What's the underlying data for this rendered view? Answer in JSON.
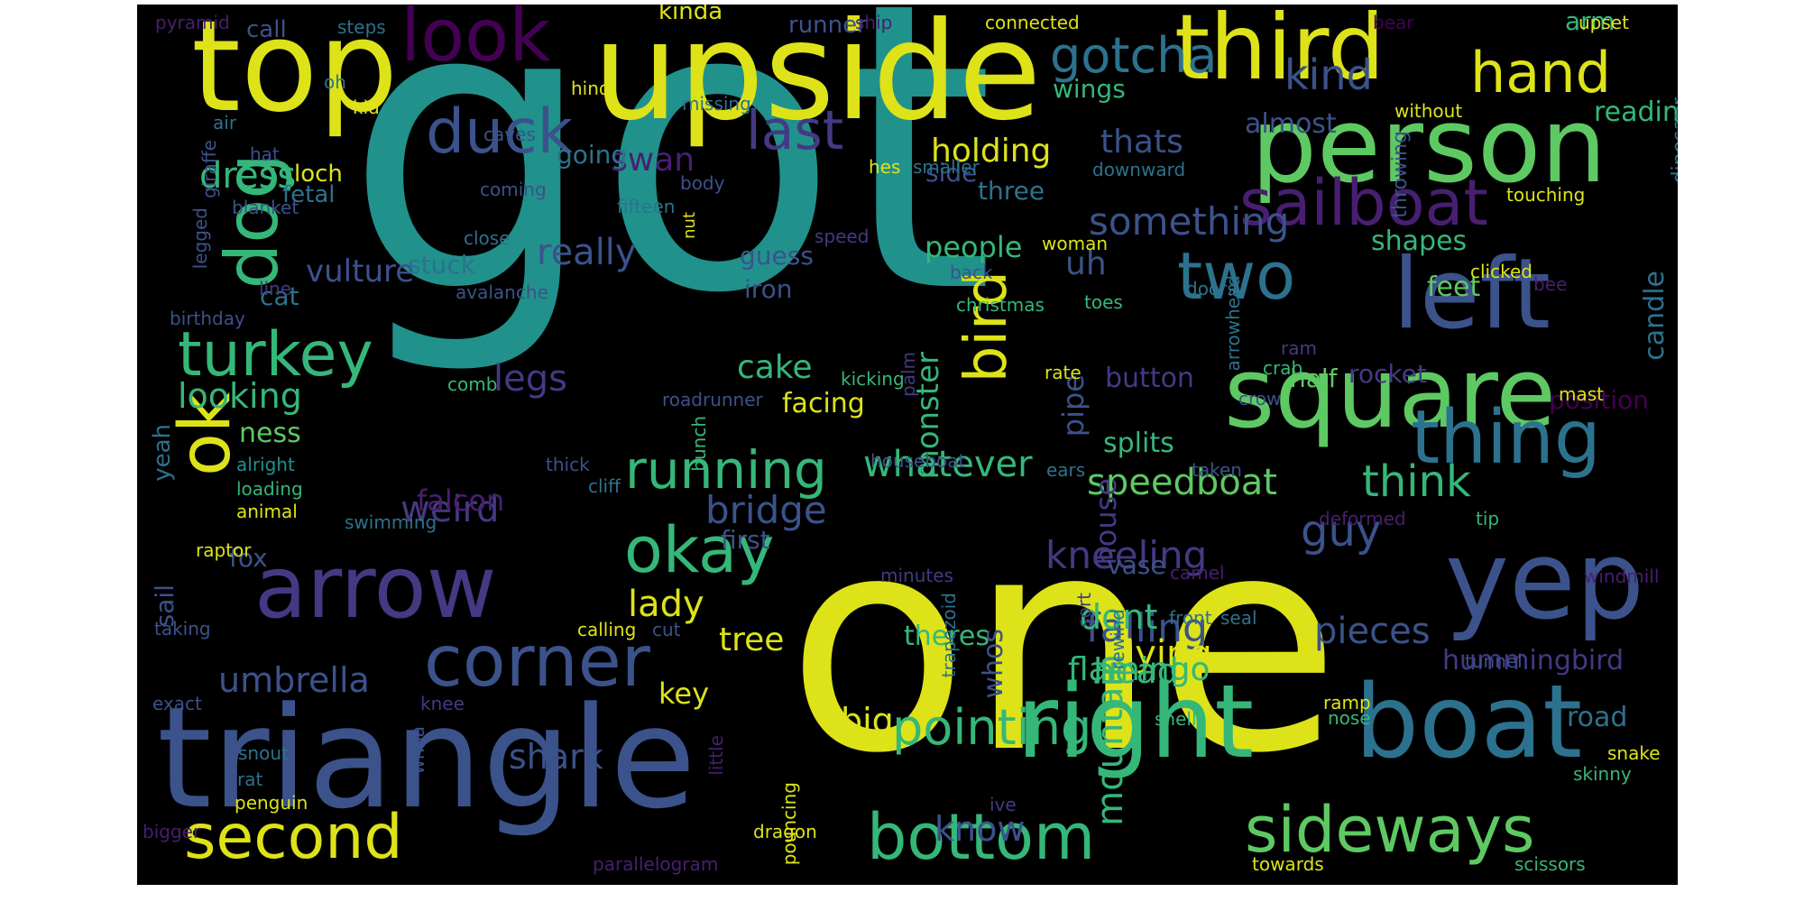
{
  "palette": {
    "yellow": "#dde318",
    "lime": "#b2dd2c",
    "green": "#5ec962",
    "teal_green": "#35b779",
    "teal": "#21918c",
    "blue": "#2c728e",
    "slate": "#3b528b",
    "indigo": "#443983",
    "purple": "#440154",
    "violet": "#481f70"
  },
  "words": [
    {
      "text": "got",
      "color": "teal"
    },
    {
      "text": "one",
      "color": "yellow"
    },
    {
      "text": "triangle",
      "color": "slate"
    },
    {
      "text": "upside",
      "color": "yellow"
    },
    {
      "text": "top",
      "color": "yellow"
    },
    {
      "text": "person",
      "color": "green"
    },
    {
      "text": "right",
      "color": "teal_green"
    },
    {
      "text": "boat",
      "color": "blue"
    },
    {
      "text": "yep",
      "color": "slate"
    },
    {
      "text": "square",
      "color": "green"
    },
    {
      "text": "left",
      "color": "slate"
    },
    {
      "text": "third",
      "color": "yellow"
    },
    {
      "text": "arrow",
      "color": "indigo"
    },
    {
      "text": "sailboat",
      "color": "violet"
    },
    {
      "text": "thing",
      "color": "blue"
    },
    {
      "text": "corner",
      "color": "slate"
    },
    {
      "text": "look",
      "color": "purple"
    },
    {
      "text": "dog",
      "color": "teal_green"
    },
    {
      "text": "two",
      "color": "blue"
    },
    {
      "text": "bird",
      "color": "yellow"
    },
    {
      "text": "ok",
      "color": "yellow"
    },
    {
      "text": "okay",
      "color": "teal_green"
    },
    {
      "text": "bottom",
      "color": "teal_green"
    },
    {
      "text": "sideways",
      "color": "green"
    },
    {
      "text": "second",
      "color": "yellow"
    },
    {
      "text": "turkey",
      "color": "teal_green"
    },
    {
      "text": "hand",
      "color": "yellow"
    },
    {
      "text": "duck",
      "color": "slate"
    },
    {
      "text": "last",
      "color": "indigo"
    },
    {
      "text": "running",
      "color": "teal_green"
    },
    {
      "text": "gotcha",
      "color": "blue"
    },
    {
      "text": "kind",
      "color": "slate"
    },
    {
      "text": "pointing",
      "color": "teal_green"
    },
    {
      "text": "guy",
      "color": "slate"
    },
    {
      "text": "think",
      "color": "teal_green"
    },
    {
      "text": "whatever",
      "color": "teal_green"
    },
    {
      "text": "speedboat",
      "color": "green"
    },
    {
      "text": "something",
      "color": "slate"
    },
    {
      "text": "house",
      "color": "indigo"
    },
    {
      "text": "falling",
      "color": "slate"
    },
    {
      "text": "kneeling",
      "color": "indigo"
    },
    {
      "text": "flying",
      "color": "yellow"
    },
    {
      "text": "head",
      "color": "teal_green"
    },
    {
      "text": "weird",
      "color": "indigo"
    },
    {
      "text": "legs",
      "color": "indigo"
    },
    {
      "text": "really",
      "color": "slate"
    },
    {
      "text": "dress",
      "color": "teal_green"
    },
    {
      "text": "umbrella",
      "color": "slate"
    },
    {
      "text": "looking",
      "color": "teal_green"
    },
    {
      "text": "bridge",
      "color": "slate"
    },
    {
      "text": "mountain",
      "color": "teal_green"
    },
    {
      "text": "shark",
      "color": "slate"
    },
    {
      "text": "pieces",
      "color": "slate"
    },
    {
      "text": "big",
      "color": "yellow"
    },
    {
      "text": "know",
      "color": "slate"
    },
    {
      "text": "holding",
      "color": "yellow"
    },
    {
      "text": "thats",
      "color": "slate"
    },
    {
      "text": "swan",
      "color": "violet"
    },
    {
      "text": "lady",
      "color": "yellow"
    },
    {
      "text": "uh",
      "color": "slate"
    },
    {
      "text": "dont",
      "color": "teal_green"
    },
    {
      "text": "cake",
      "color": "teal_green"
    },
    {
      "text": "flamingo",
      "color": "teal_green"
    },
    {
      "text": "tree",
      "color": "yellow"
    },
    {
      "text": "vulture",
      "color": "slate"
    },
    {
      "text": "monster",
      "color": "teal_green"
    },
    {
      "text": "almost",
      "color": "slate"
    },
    {
      "text": "reading",
      "color": "teal_green"
    },
    {
      "text": "hummingbird",
      "color": "indigo"
    },
    {
      "text": "pipe",
      "color": "slate"
    },
    {
      "text": "people",
      "color": "teal_green"
    },
    {
      "text": "feet",
      "color": "green"
    },
    {
      "text": "shapes",
      "color": "teal_green"
    },
    {
      "text": "button",
      "color": "indigo"
    },
    {
      "text": "splits",
      "color": "teal_green"
    },
    {
      "text": "key",
      "color": "yellow"
    },
    {
      "text": "theres",
      "color": "teal_green"
    },
    {
      "text": "whos",
      "color": "slate"
    },
    {
      "text": "road",
      "color": "blue"
    },
    {
      "text": "side",
      "color": "slate"
    },
    {
      "text": "going",
      "color": "blue"
    },
    {
      "text": "wings",
      "color": "teal_green"
    },
    {
      "text": "falcon",
      "color": "violet"
    },
    {
      "text": "candle",
      "color": "blue"
    },
    {
      "text": "loch",
      "color": "yellow"
    },
    {
      "text": "facing",
      "color": "yellow"
    },
    {
      "text": "iron",
      "color": "slate"
    },
    {
      "text": "guess",
      "color": "slate"
    },
    {
      "text": "stuck",
      "color": "blue"
    },
    {
      "text": "cat",
      "color": "blue"
    },
    {
      "text": "three",
      "color": "blue"
    },
    {
      "text": "ness",
      "color": "green"
    },
    {
      "text": "rocket",
      "color": "indigo"
    },
    {
      "text": "first",
      "color": "slate"
    },
    {
      "text": "vase",
      "color": "slate"
    },
    {
      "text": "tail",
      "color": "slate"
    },
    {
      "text": "arm",
      "color": "teal_green"
    },
    {
      "text": "fox",
      "color": "slate"
    },
    {
      "text": "sail",
      "color": "slate"
    },
    {
      "text": "half",
      "color": "green"
    },
    {
      "text": "position",
      "color": "purple"
    },
    {
      "text": "yeah",
      "color": "blue"
    },
    {
      "text": "fetal",
      "color": "blue"
    },
    {
      "text": "runner",
      "color": "slate"
    },
    {
      "text": "kinda",
      "color": "yellow"
    },
    {
      "text": "call",
      "color": "slate"
    },
    {
      "text": "pyramid",
      "color": "violet"
    },
    {
      "text": "steps",
      "color": "blue"
    },
    {
      "text": "ship",
      "color": "violet"
    },
    {
      "text": "connected",
      "color": "yellow"
    },
    {
      "text": "bear",
      "color": "purple"
    },
    {
      "text": "upset",
      "color": "yellow"
    },
    {
      "text": "oh",
      "color": "blue"
    },
    {
      "text": "hind",
      "color": "yellow"
    },
    {
      "text": "kid",
      "color": "yellow"
    },
    {
      "text": "air",
      "color": "blue"
    },
    {
      "text": "caves",
      "color": "slate"
    },
    {
      "text": "missing",
      "color": "blue"
    },
    {
      "text": "without",
      "color": "yellow"
    },
    {
      "text": "hat",
      "color": "slate"
    },
    {
      "text": "hes",
      "color": "yellow"
    },
    {
      "text": "smaller",
      "color": "blue"
    },
    {
      "text": "downward",
      "color": "blue"
    },
    {
      "text": "coming",
      "color": "slate"
    },
    {
      "text": "body",
      "color": "slate"
    },
    {
      "text": "fifteen",
      "color": "blue"
    },
    {
      "text": "touching",
      "color": "yellow"
    },
    {
      "text": "throwing",
      "color": "slate"
    },
    {
      "text": "dinosaur",
      "color": "blue"
    },
    {
      "text": "giraffe",
      "color": "slate"
    },
    {
      "text": "blanket",
      "color": "slate"
    },
    {
      "text": "legged",
      "color": "slate"
    },
    {
      "text": "line",
      "color": "indigo"
    },
    {
      "text": "close",
      "color": "blue"
    },
    {
      "text": "avalanche",
      "color": "slate"
    },
    {
      "text": "nut",
      "color": "yellow"
    },
    {
      "text": "speed",
      "color": "indigo"
    },
    {
      "text": "back",
      "color": "slate"
    },
    {
      "text": "woman",
      "color": "yellow"
    },
    {
      "text": "doors",
      "color": "blue"
    },
    {
      "text": "arrowhead",
      "color": "blue"
    },
    {
      "text": "clicked",
      "color": "yellow"
    },
    {
      "text": "bee",
      "color": "violet"
    },
    {
      "text": "birthday",
      "color": "slate"
    },
    {
      "text": "christmas",
      "color": "teal_green"
    },
    {
      "text": "toes",
      "color": "teal_green"
    },
    {
      "text": "crab",
      "color": "teal_green"
    },
    {
      "text": "ram",
      "color": "indigo"
    },
    {
      "text": "crow",
      "color": "slate"
    },
    {
      "text": "comb",
      "color": "teal_green"
    },
    {
      "text": "palm",
      "color": "indigo"
    },
    {
      "text": "kicking",
      "color": "teal_green"
    },
    {
      "text": "mast",
      "color": "yellow"
    },
    {
      "text": "alright",
      "color": "teal"
    },
    {
      "text": "rate",
      "color": "yellow"
    },
    {
      "text": "thick",
      "color": "slate"
    },
    {
      "text": "roadrunner",
      "color": "slate"
    },
    {
      "text": "houseboat",
      "color": "slate"
    },
    {
      "text": "bunch",
      "color": "teal_green"
    },
    {
      "text": "ears",
      "color": "blue"
    },
    {
      "text": "taken",
      "color": "slate"
    },
    {
      "text": "loading",
      "color": "teal_green"
    },
    {
      "text": "animal",
      "color": "yellow"
    },
    {
      "text": "swimming",
      "color": "blue"
    },
    {
      "text": "deformed",
      "color": "violet"
    },
    {
      "text": "tip",
      "color": "teal_green"
    },
    {
      "text": "raptor",
      "color": "yellow"
    },
    {
      "text": "cliff",
      "color": "blue"
    },
    {
      "text": "minutes",
      "color": "indigo"
    },
    {
      "text": "camel",
      "color": "violet"
    },
    {
      "text": "windmill",
      "color": "violet"
    },
    {
      "text": "front",
      "color": "blue"
    },
    {
      "text": "seal",
      "color": "blue"
    },
    {
      "text": "sort",
      "color": "indigo"
    },
    {
      "text": "trapezoid",
      "color": "blue"
    },
    {
      "text": "rewind",
      "color": "blue"
    },
    {
      "text": "taking",
      "color": "slate"
    },
    {
      "text": "calling",
      "color": "yellow"
    },
    {
      "text": "cut",
      "color": "slate"
    },
    {
      "text": "ow",
      "color": "yellow"
    },
    {
      "text": "tunnel",
      "color": "slate"
    },
    {
      "text": "exact",
      "color": "slate"
    },
    {
      "text": "ramp",
      "color": "yellow"
    },
    {
      "text": "knee",
      "color": "indigo"
    },
    {
      "text": "shell",
      "color": "teal_green"
    },
    {
      "text": "nose",
      "color": "teal_green"
    },
    {
      "text": "snake",
      "color": "yellow"
    },
    {
      "text": "skinny",
      "color": "teal_green"
    },
    {
      "text": "snout",
      "color": "blue"
    },
    {
      "text": "rat",
      "color": "blue"
    },
    {
      "text": "penguin",
      "color": "yellow"
    },
    {
      "text": "little",
      "color": "violet"
    },
    {
      "text": "pouncing",
      "color": "yellow"
    },
    {
      "text": "ive",
      "color": "indigo"
    },
    {
      "text": "bigger",
      "color": "violet"
    },
    {
      "text": "whoa",
      "color": "slate"
    },
    {
      "text": "dragon",
      "color": "yellow"
    },
    {
      "text": "parallelogram",
      "color": "violet"
    },
    {
      "text": "towards",
      "color": "yellow"
    },
    {
      "text": "scissors",
      "color": "teal_green"
    }
  ]
}
